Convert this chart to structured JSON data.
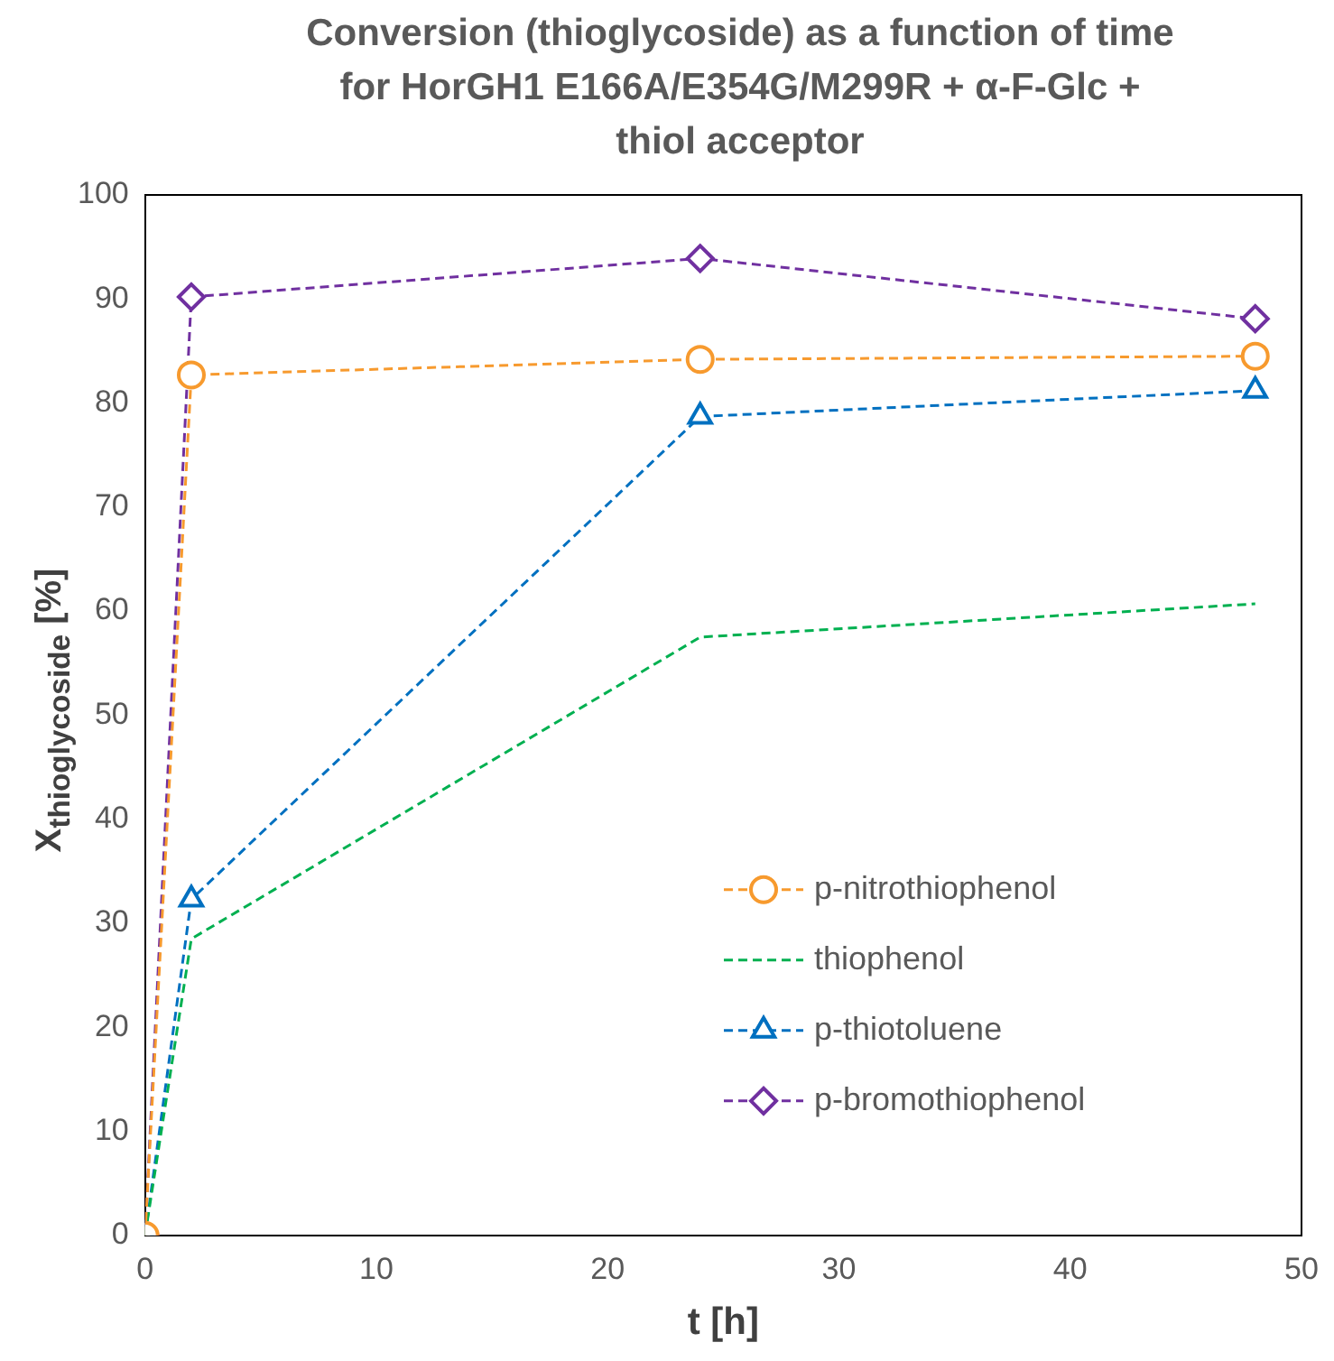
{
  "chart_data": {
    "type": "line",
    "title": "Conversion (thioglycoside) as a function of time for HorGH1 E166A/E354G/M299R +  α-F-Glc + thiol acceptor",
    "xlabel": "t [h]",
    "ylabel": "X$_{thioglycoside}$ [%]",
    "x": [
      0,
      2,
      24,
      48
    ],
    "series": [
      {
        "name": "p-nitrothiophenol",
        "color": "#f79a2e",
        "marker": "circle",
        "values": [
          0,
          82.7,
          84.2,
          84.5
        ]
      },
      {
        "name": "thiophenol",
        "color": "#00b050",
        "marker": "none",
        "values": [
          0,
          28.5,
          57.5,
          60.7
        ]
      },
      {
        "name": "p-thiotoluene",
        "color": "#0070c0",
        "marker": "triangle",
        "values": [
          0,
          32.3,
          78.7,
          81.2
        ]
      },
      {
        "name": "p-bromothiophenol",
        "color": "#7030a0",
        "marker": "diamond",
        "values": [
          0,
          90.2,
          93.9,
          88.1
        ]
      }
    ],
    "xlim": [
      0,
      50
    ],
    "xticks": [
      0,
      10,
      20,
      30,
      40,
      50
    ],
    "ylim": [
      0,
      100
    ],
    "yticks": [
      0,
      10,
      20,
      30,
      40,
      50,
      60,
      70,
      80,
      90,
      100
    ],
    "grid": false,
    "legend": "bottom right",
    "line_style": "dashed"
  }
}
